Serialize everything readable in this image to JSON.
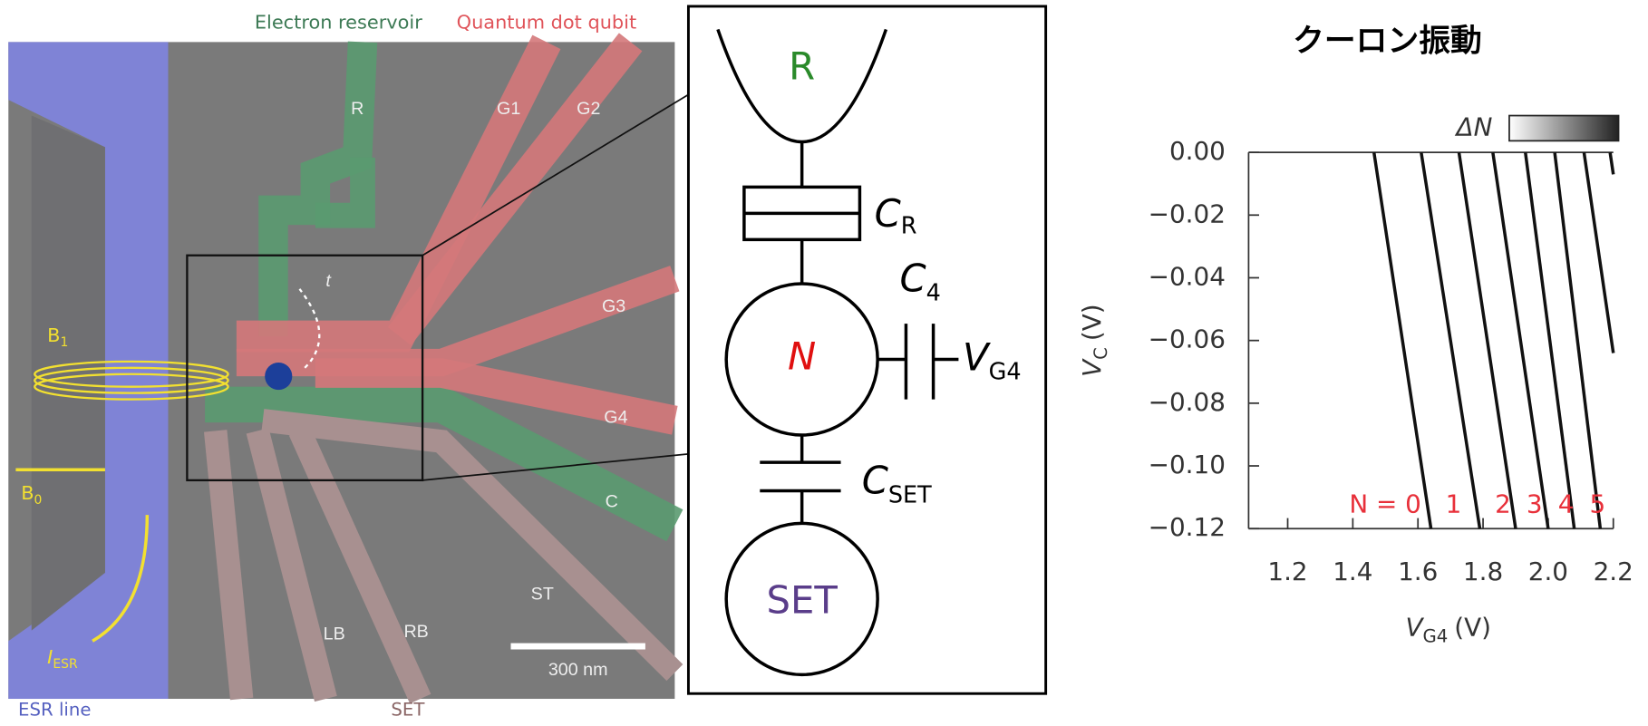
{
  "micrograph": {
    "top_left": "Electron reservoir",
    "top_right": "Quantum dot qubit",
    "gates": [
      "R",
      "G1",
      "G2",
      "G3",
      "G4",
      "C",
      "ST",
      "LB",
      "RB"
    ],
    "b1": {
      "main": "B",
      "sub": "1"
    },
    "b0": {
      "main": "B",
      "sub": "0"
    },
    "iesr": {
      "main": "I",
      "sub": "ESR"
    },
    "t": "t",
    "scale_bar": "300 nm",
    "bottom_left": "ESR line",
    "bottom_center": "SET"
  },
  "circuit": {
    "reservoir": "R",
    "cr": {
      "main": "C",
      "sub": "R"
    },
    "c4": {
      "main": "C",
      "sub": "4"
    },
    "dot": "N",
    "vg4": {
      "main": "V",
      "sub": "G4"
    },
    "cset": {
      "main": "C",
      "sub": "SET"
    },
    "set": "SET"
  },
  "chart_data": {
    "type": "line",
    "title": "クーロン振動",
    "colorbar_label": "ΔN",
    "xlabel": {
      "main": "V",
      "sub": "G4",
      "unit": "(V)"
    },
    "ylabel": {
      "main": "V",
      "sub": "C",
      "unit": "(V)"
    },
    "xlim": [
      1.08,
      2.2
    ],
    "ylim": [
      -0.12,
      0.0
    ],
    "xticks": [
      1.2,
      1.4,
      1.6,
      1.8,
      {
        "value": 2,
        "label": "2.0"
      },
      2.2
    ],
    "yticks": [
      {
        "value": 0,
        "label": "0.00"
      },
      {
        "value": -0.02,
        "label": "−0.02"
      },
      {
        "value": -0.04,
        "label": "−0.04"
      },
      {
        "value": -0.06,
        "label": "−0.06"
      },
      {
        "value": -0.08,
        "label": "−0.08"
      },
      {
        "value": -0.1,
        "label": "−0.10"
      },
      {
        "value": -0.12,
        "label": "−0.12"
      }
    ],
    "series": [
      {
        "color": "#111111",
        "x": [
          1.465,
          1.64
        ],
        "values": [
          0,
          -0.12
        ]
      },
      {
        "color": "#111111",
        "x": [
          1.61,
          1.79
        ],
        "values": [
          0,
          -0.12
        ]
      },
      {
        "color": "#111111",
        "x": [
          1.726,
          1.9
        ],
        "values": [
          0,
          -0.12
        ]
      },
      {
        "color": "#111111",
        "x": [
          1.83,
          2.0
        ],
        "values": [
          0,
          -0.12
        ]
      },
      {
        "color": "#111111",
        "x": [
          1.93,
          2.08
        ],
        "values": [
          0,
          -0.12
        ]
      },
      {
        "color": "#111111",
        "x": [
          2.02,
          2.16
        ],
        "values": [
          0,
          -0.12
        ]
      },
      {
        "color": "#111111",
        "x": [
          2.11,
          2.2
        ],
        "values": [
          0,
          -0.064
        ]
      },
      {
        "color": "#111111",
        "x": [
          2.19,
          2.2
        ],
        "values": [
          0,
          -0.007
        ]
      }
    ],
    "annotations": [
      "N = 0",
      "1",
      "2",
      "3",
      "4",
      "5"
    ],
    "annotation_color": "#e8303a"
  }
}
